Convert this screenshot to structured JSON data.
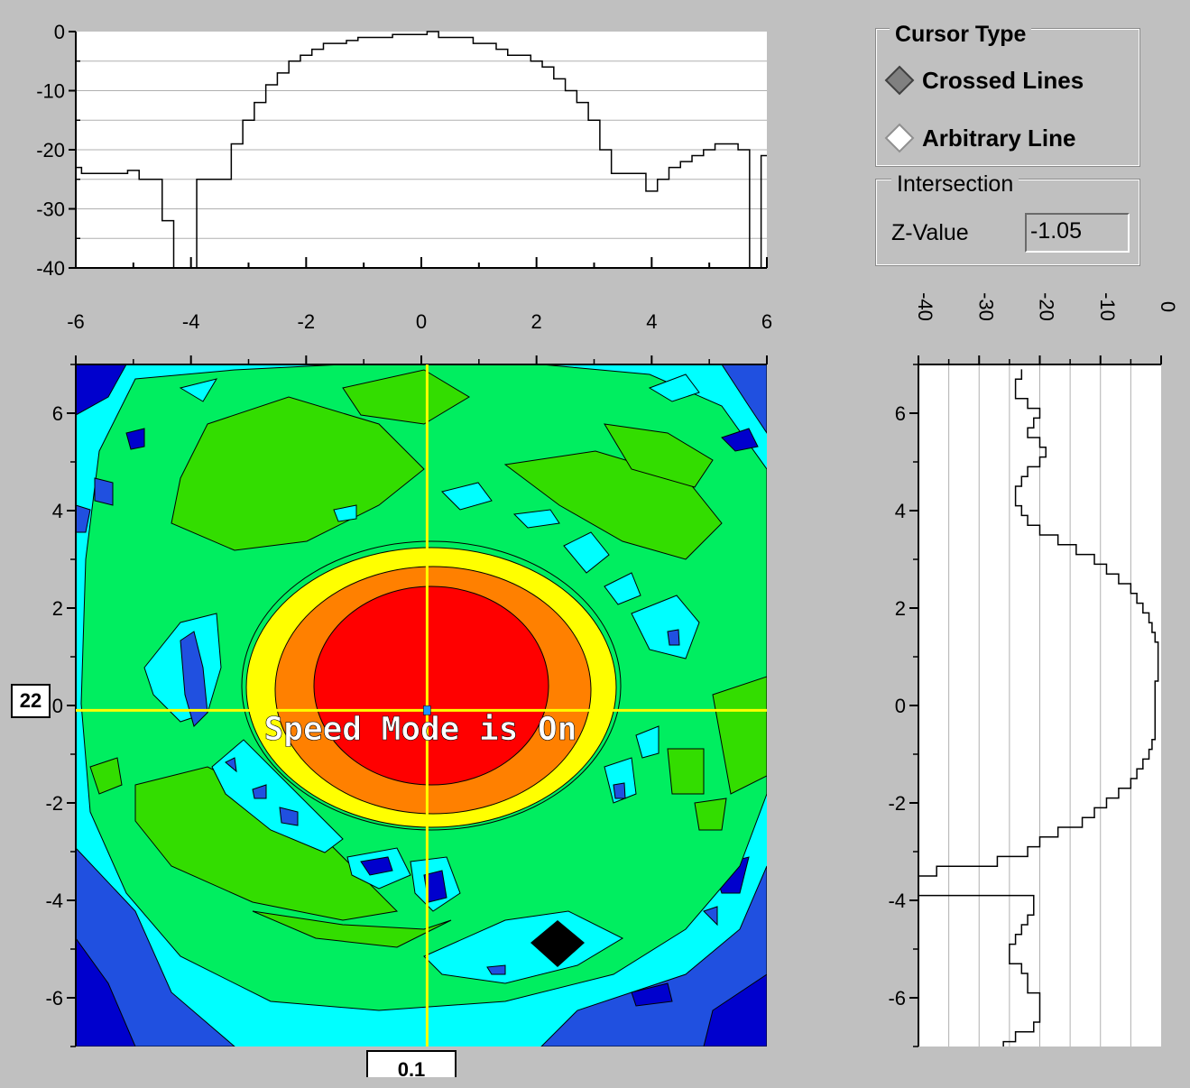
{
  "cursor_type": {
    "title": "Cursor Type",
    "options": [
      {
        "label": "Crossed Lines",
        "selected": true
      },
      {
        "label": "Arbitrary Line",
        "selected": false
      }
    ]
  },
  "intersection": {
    "title": "Intersection",
    "z_label": "Z-Value",
    "z_value": "-1.05"
  },
  "overlay_text": "Speed Mode is On",
  "row_indicator": "22",
  "col_indicator": "0.1",
  "colors": {
    "background": "#c0c0c0",
    "crosshair": "#ffff00",
    "levels": [
      "#0000cd",
      "#2050e0",
      "#00ffff",
      "#00ee60",
      "#33dd00",
      "#ffff00",
      "#ff8000",
      "#ff0000"
    ]
  },
  "chart_data": [
    {
      "type": "line",
      "name": "top-profile",
      "ylim": [
        -40,
        0
      ],
      "xlim": [
        -6,
        6
      ],
      "yticks": [
        "0",
        "-10",
        "-20",
        "-30",
        "-40"
      ],
      "x": [
        -6,
        -5.8,
        -5.6,
        -5.4,
        -5.2,
        -5,
        -4.8,
        -4.6,
        -4.4,
        -4.2,
        -4,
        -3.8,
        -3.6,
        -3.4,
        -3.2,
        -3,
        -2.8,
        -2.6,
        -2.4,
        -2.2,
        -2,
        -1.8,
        -1.6,
        -1.4,
        -1.2,
        -1,
        -0.8,
        -0.6,
        -0.4,
        -0.2,
        0,
        0.2,
        0.4,
        0.6,
        0.8,
        1,
        1.2,
        1.4,
        1.6,
        1.8,
        2,
        2.2,
        2.4,
        2.6,
        2.8,
        3,
        3.2,
        3.4,
        3.6,
        3.8,
        4,
        4.2,
        4.4,
        4.6,
        4.8,
        5,
        5.2,
        5.4,
        5.6,
        5.8,
        6
      ],
      "y": [
        -23,
        -24,
        -24,
        -24,
        -24,
        -23.5,
        -25,
        -25,
        -32,
        -40,
        -40,
        -25,
        -25,
        -25,
        -19,
        -15,
        -12,
        -9,
        -7,
        -5,
        -4,
        -3,
        -2,
        -2,
        -1.5,
        -1,
        -1,
        -1,
        -0.5,
        -0.5,
        -0.5,
        0,
        -1,
        -1,
        -1,
        -2,
        -2,
        -3,
        -4,
        -4,
        -5,
        -6,
        -8,
        -10,
        -12,
        -15,
        -20,
        -24,
        -24,
        -24,
        -27,
        -25,
        -23,
        -22,
        -21,
        -20,
        -19,
        -19,
        -20,
        -40,
        -21
      ]
    },
    {
      "type": "line",
      "name": "right-profile",
      "xlim": [
        -40,
        0
      ],
      "ylim": [
        -7,
        7
      ],
      "xticks": [
        "-40",
        "-30",
        "-20",
        "-10",
        "0"
      ],
      "y": [
        6.8,
        6.6,
        6.4,
        6.2,
        6,
        5.8,
        5.6,
        5.4,
        5.2,
        5,
        4.8,
        4.6,
        4.4,
        4.2,
        4,
        3.8,
        3.6,
        3.4,
        3.2,
        3,
        2.8,
        2.6,
        2.4,
        2.2,
        2,
        1.8,
        1.6,
        1.4,
        1.2,
        1,
        0.8,
        0.6,
        0.4,
        0.2,
        0,
        -0.2,
        -0.4,
        -0.6,
        -0.8,
        -1,
        -1.2,
        -1.4,
        -1.6,
        -1.8,
        -2,
        -2.2,
        -2.4,
        -2.6,
        -2.8,
        -3,
        -3.2,
        -3.4,
        -3.6,
        -3.8,
        -4,
        -4.2,
        -4.4,
        -4.6,
        -4.8,
        -5,
        -5.2,
        -5.4,
        -5.6,
        -5.8,
        -6,
        -6.2,
        -6.4,
        -6.6,
        -6.8,
        -7
      ],
      "x": [
        -23,
        -24,
        -24,
        -22,
        -20,
        -21,
        -22,
        -20,
        -19,
        -20,
        -22,
        -23,
        -24,
        -24,
        -23,
        -22,
        -20,
        -17,
        -14,
        -11,
        -9,
        -7,
        -5,
        -4,
        -3,
        -2,
        -1.5,
        -1,
        -0.5,
        -0.5,
        -0.5,
        -0.5,
        -1,
        -1,
        -1,
        -1,
        -1,
        -1,
        -1.5,
        -2,
        -3,
        -4,
        -5,
        -7,
        -9,
        -11,
        -13,
        -17,
        -20,
        -22,
        -27,
        -37,
        -40,
        -40,
        -21,
        -21,
        -22,
        -23,
        -24,
        -25,
        -25,
        -23,
        -22,
        -22,
        -20,
        -20,
        -20,
        -21,
        -24,
        -26
      ]
    },
    {
      "type": "heatmap",
      "name": "contour-map",
      "xlim": [
        -6,
        6
      ],
      "ylim": [
        -7,
        7
      ],
      "xticks": [
        "-6",
        "-4",
        "-2",
        "0",
        "2",
        "4",
        "6"
      ],
      "yticks": [
        "6",
        "4",
        "2",
        "0",
        "-2",
        "-4",
        "-6"
      ],
      "cursor": {
        "x": 0.1,
        "y": -0.1
      }
    }
  ]
}
